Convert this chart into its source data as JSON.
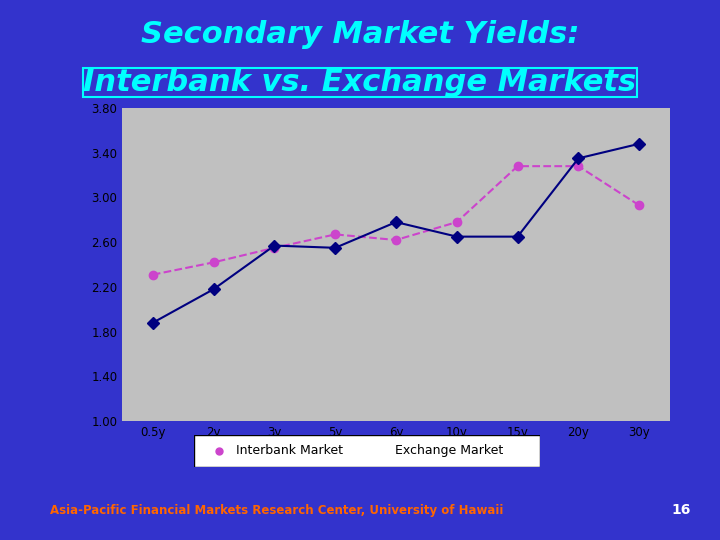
{
  "title_line1": "Secondary Market Yields:",
  "title_line2": "Interbank vs. Exchange Markets",
  "background_slide": "#3333cc",
  "title_color": "#00ffff",
  "plot_bg": "#c0c0c0",
  "outer_bg": "#ffffff",
  "x_labels": [
    "0.5y",
    "2y",
    "3y",
    "5y",
    "6y",
    "10y",
    "15y",
    "20y",
    "30y"
  ],
  "x_positions": [
    0,
    1,
    2,
    3,
    4,
    5,
    6,
    7,
    8
  ],
  "interbank_y": [
    1.88,
    2.18,
    2.57,
    2.55,
    2.78,
    2.65,
    2.65,
    3.35,
    3.48
  ],
  "exchange_y": [
    2.31,
    2.42,
    2.55,
    2.67,
    2.62,
    2.78,
    3.28,
    3.28,
    2.93
  ],
  "interbank_color": "#000080",
  "exchange_color": "#cc44cc",
  "interbank_marker": "D",
  "exchange_marker": "o",
  "ylim": [
    1.0,
    3.8
  ],
  "yticks": [
    1.0,
    1.4,
    1.8,
    2.2,
    2.6,
    3.0,
    3.4,
    3.8
  ],
  "legend_label_interbank": "Interbank Market",
  "legend_label_exchange": "Exchange Market",
  "footer_text": "Asia-Pacific Financial Markets Research Center, University of Hawaii",
  "footer_color": "#ff6600",
  "slide_number": "16",
  "slide_number_color": "#ffffff"
}
